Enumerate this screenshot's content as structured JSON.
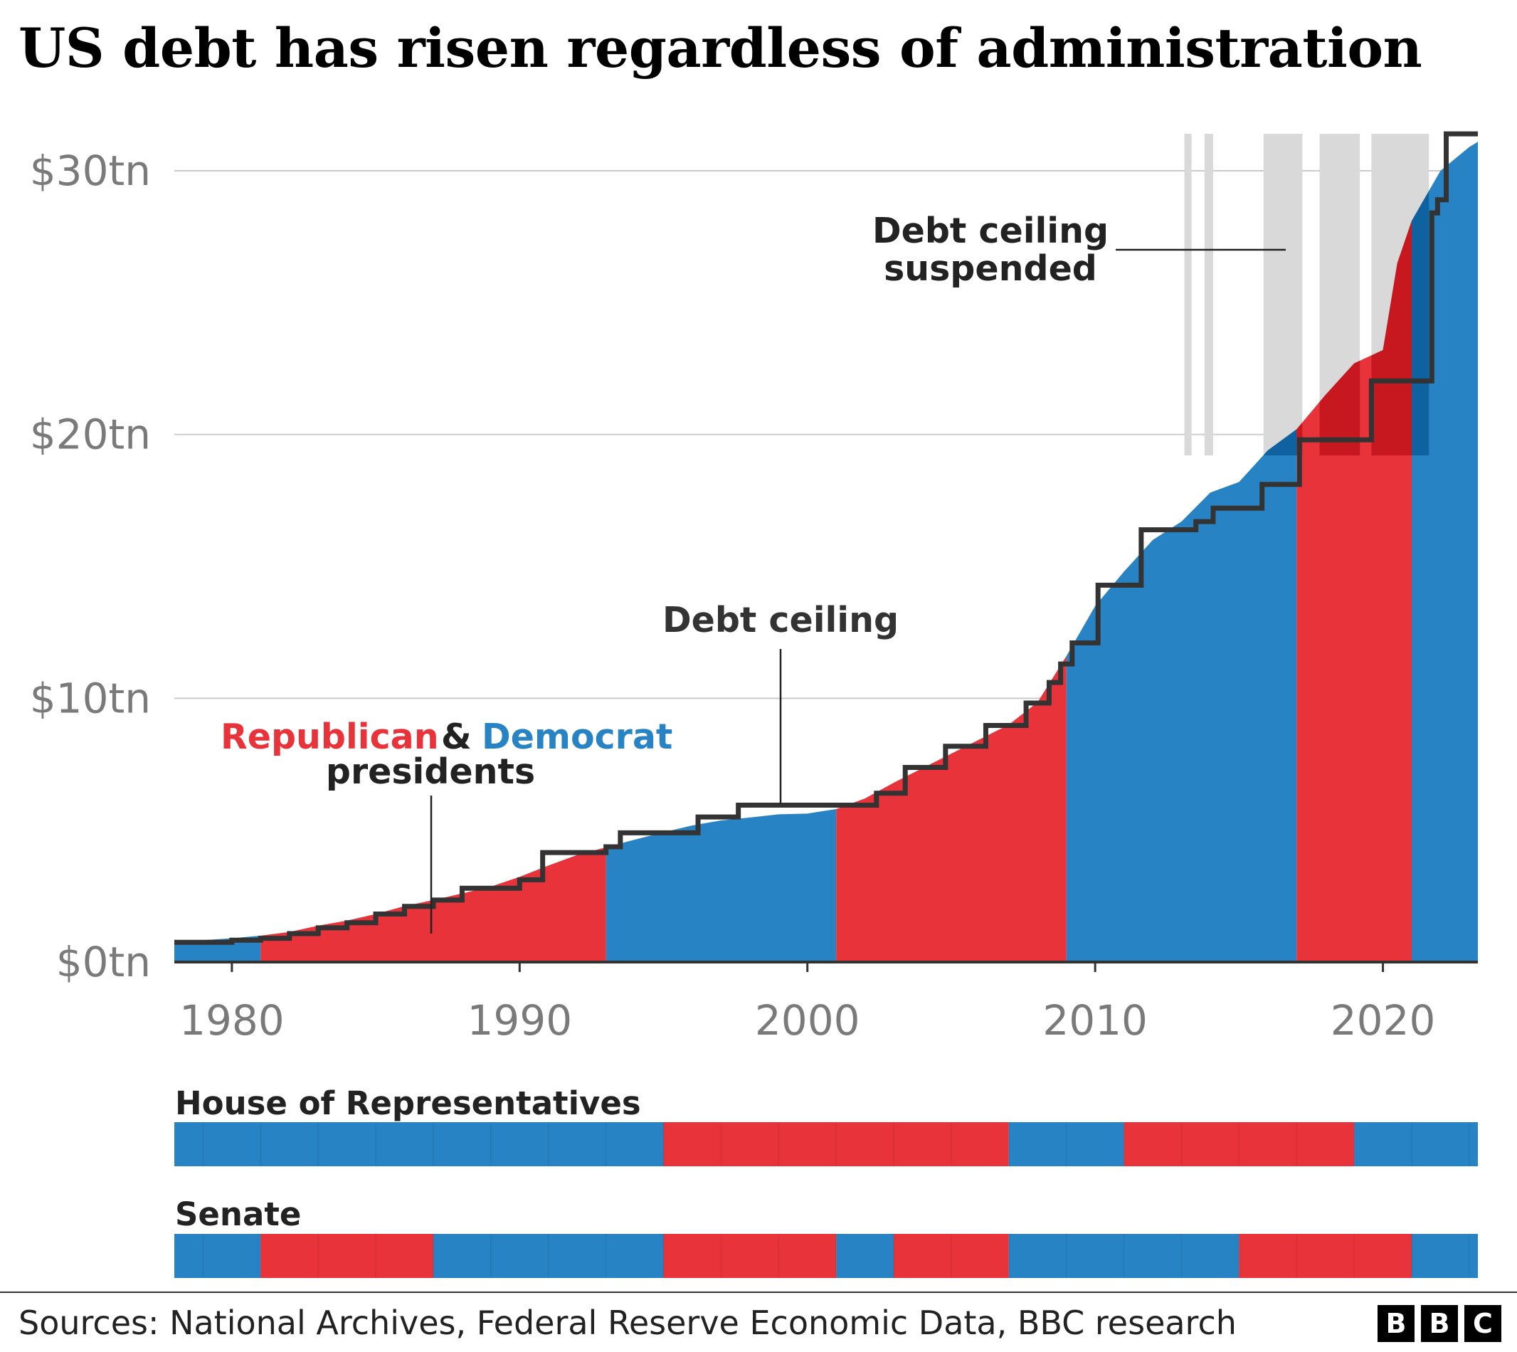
{
  "title": "US debt has risen regardless of administration",
  "source": "Sources: National Archives, Federal Reserve Economic Data, BBC research",
  "logo": [
    "B",
    "B",
    "C"
  ],
  "colors": {
    "republican": "#e8333a",
    "democrat": "#2783c3",
    "republican_dark": "#c8181f",
    "democrat_dark": "#0f62a0",
    "ceiling_line": "#333333",
    "suspended_band": "#d9d9d9",
    "grid": "#cccccc"
  },
  "annotations": {
    "legend_republican": "Republican",
    "legend_and": "&",
    "legend_democrat": "Democrat",
    "legend_presidents": "presidents",
    "debt_ceiling": "Debt ceiling",
    "suspended_line1": "Debt ceiling",
    "suspended_line2": "suspended"
  },
  "chart_data": [
    {
      "type": "area",
      "title": "US debt has risen regardless of administration",
      "xlabel": "",
      "ylabel": "",
      "xlim": [
        1978,
        2023.3
      ],
      "ylim": [
        0,
        30
      ],
      "x_ticks": [
        1980,
        1990,
        2000,
        2010,
        2020
      ],
      "x_tick_labels": [
        "1980",
        "1990",
        "2000",
        "2010",
        "2020"
      ],
      "y_ticks": [
        0,
        10,
        20,
        30
      ],
      "y_tick_labels": [
        "$0tn",
        "$10tn",
        "$20tn",
        "$30tn"
      ],
      "grid": "horizontal",
      "series": [
        {
          "name": "Debt",
          "x": [
            1978,
            1979,
            1980,
            1981,
            1982,
            1983,
            1984,
            1985,
            1986,
            1987,
            1988,
            1989,
            1990,
            1991,
            1992,
            1993,
            1994,
            1995,
            1996,
            1997,
            1998,
            1999,
            2000,
            2001,
            2002,
            2003,
            2004,
            2005,
            2006,
            2007,
            2008,
            2009,
            2010,
            2011,
            2012,
            2013,
            2014,
            2015,
            2016,
            2017,
            2018,
            2019,
            2020,
            2020.5,
            2021,
            2022,
            2023,
            2023.3
          ],
          "values": [
            0.77,
            0.83,
            0.9,
            1.0,
            1.14,
            1.38,
            1.57,
            1.82,
            2.12,
            2.35,
            2.6,
            2.86,
            3.23,
            3.66,
            4.06,
            4.35,
            4.64,
            4.92,
            5.18,
            5.37,
            5.48,
            5.6,
            5.63,
            5.8,
            6.2,
            6.8,
            7.35,
            7.9,
            8.45,
            9.0,
            9.85,
            11.6,
            13.5,
            14.8,
            16.0,
            16.7,
            17.8,
            18.2,
            19.4,
            20.2,
            21.5,
            22.7,
            23.2,
            26.5,
            28.1,
            30.0,
            30.9,
            31.1
          ]
        }
      ],
      "presidents": [
        {
          "party": "Democrat",
          "start": 1978,
          "end": 1981
        },
        {
          "party": "Republican",
          "start": 1981,
          "end": 1993
        },
        {
          "party": "Democrat",
          "start": 1993,
          "end": 2001
        },
        {
          "party": "Republican",
          "start": 2001,
          "end": 2009
        },
        {
          "party": "Democrat",
          "start": 2009,
          "end": 2017
        },
        {
          "party": "Republican",
          "start": 2017,
          "end": 2021
        },
        {
          "party": "Democrat",
          "start": 2021,
          "end": 2023.3
        }
      ],
      "debt_ceiling": {
        "x": [
          1978,
          1980,
          1981,
          1982,
          1983,
          1984,
          1985,
          1986,
          1987,
          1988,
          1990,
          1990.8,
          1993,
          1993.5,
          1996.2,
          1997.6,
          2002.4,
          2003.4,
          2004.8,
          2006.2,
          2007.6,
          2008.4,
          2008.8,
          2009.2,
          2010.1,
          2011.6,
          2013.5,
          2014.1,
          2015.8,
          2017.1,
          2018.1,
          2019.6,
          2021.7,
          2021.9,
          2022.2,
          2023.3
        ],
        "values": [
          0.75,
          0.83,
          0.9,
          1.08,
          1.3,
          1.49,
          1.82,
          2.11,
          2.35,
          2.8,
          3.12,
          4.15,
          4.37,
          4.9,
          5.5,
          5.95,
          6.4,
          7.38,
          8.18,
          8.97,
          9.82,
          10.6,
          11.3,
          12.1,
          14.29,
          16.39,
          16.7,
          17.21,
          18.11,
          19.8,
          19.8,
          22.03,
          28.4,
          28.9,
          31.4,
          31.4
        ]
      },
      "suspended_periods": [
        [
          2013.1,
          2013.35
        ],
        [
          2013.8,
          2014.1
        ],
        [
          2015.85,
          2017.2
        ],
        [
          2017.8,
          2019.2
        ],
        [
          2019.6,
          2021.6
        ]
      ]
    },
    {
      "type": "bar",
      "title": "House of Representatives",
      "periods": [
        {
          "party": "Democrat",
          "start": 1978,
          "end": 1995
        },
        {
          "party": "Republican",
          "start": 1995,
          "end": 2007
        },
        {
          "party": "Democrat",
          "start": 2007,
          "end": 2011
        },
        {
          "party": "Republican",
          "start": 2011,
          "end": 2019
        },
        {
          "party": "Democrat",
          "start": 2019,
          "end": 2023.3
        }
      ]
    },
    {
      "type": "bar",
      "title": "Senate",
      "periods": [
        {
          "party": "Democrat",
          "start": 1978,
          "end": 1981
        },
        {
          "party": "Republican",
          "start": 1981,
          "end": 1987
        },
        {
          "party": "Democrat",
          "start": 1987,
          "end": 1995
        },
        {
          "party": "Republican",
          "start": 1995,
          "end": 2001
        },
        {
          "party": "Democrat",
          "start": 2001,
          "end": 2003
        },
        {
          "party": "Republican",
          "start": 2003,
          "end": 2007
        },
        {
          "party": "Democrat",
          "start": 2007,
          "end": 2015
        },
        {
          "party": "Republican",
          "start": 2015,
          "end": 2021
        },
        {
          "party": "Democrat",
          "start": 2021,
          "end": 2023.3
        }
      ]
    }
  ]
}
